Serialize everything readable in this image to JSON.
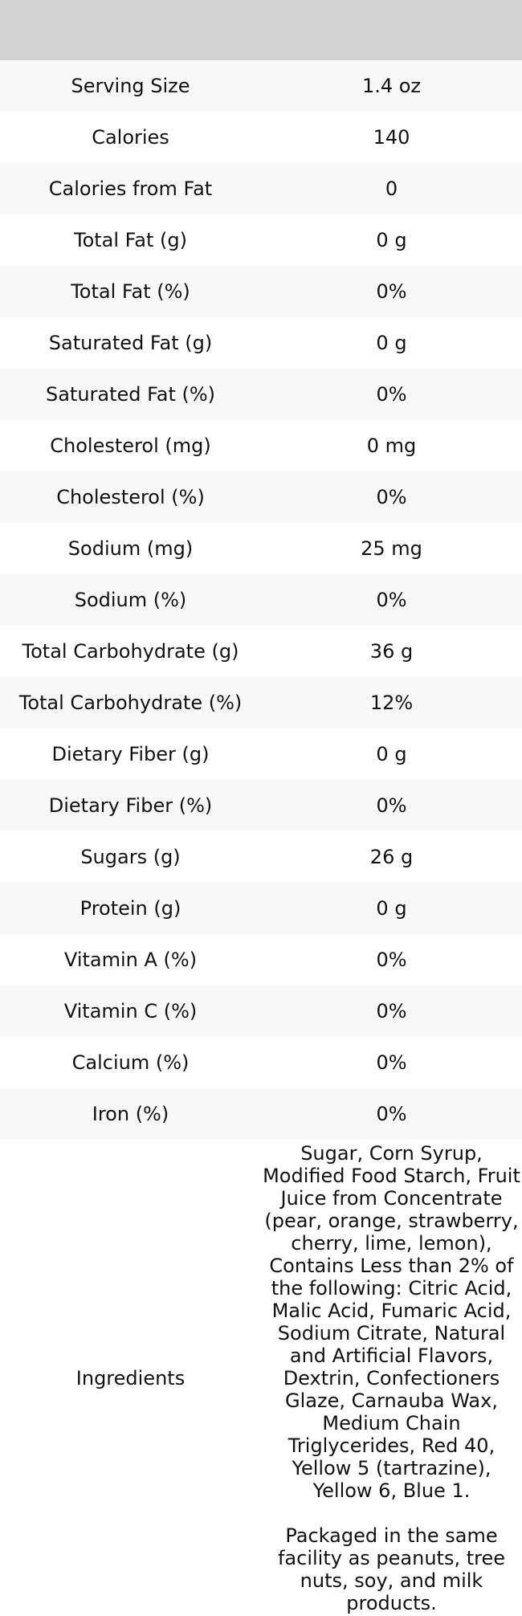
{
  "colors": {
    "header_bg": "#d3d3d3",
    "stripe_bg": "#f8f8f8",
    "row_bg": "#ffffff",
    "text": "#111111"
  },
  "table": {
    "header": {
      "col1": "",
      "col2": ""
    },
    "rows": [
      {
        "label": "Serving Size",
        "value": "1.4 oz"
      },
      {
        "label": "Calories",
        "value": "140"
      },
      {
        "label": "Calories from Fat",
        "value": "0"
      },
      {
        "label": "Total Fat (g)",
        "value": "0 g"
      },
      {
        "label": "Total Fat (%)",
        "value": "0%"
      },
      {
        "label": "Saturated Fat (g)",
        "value": "0 g"
      },
      {
        "label": "Saturated Fat (%)",
        "value": "0%"
      },
      {
        "label": "Cholesterol (mg)",
        "value": "0 mg"
      },
      {
        "label": "Cholesterol (%)",
        "value": "0%"
      },
      {
        "label": "Sodium (mg)",
        "value": "25 mg"
      },
      {
        "label": "Sodium (%)",
        "value": "0%"
      },
      {
        "label": "Total Carbohydrate (g)",
        "value": "36 g"
      },
      {
        "label": "Total Carbohydrate (%)",
        "value": "12%"
      },
      {
        "label": "Dietary Fiber (g)",
        "value": "0 g"
      },
      {
        "label": "Dietary Fiber (%)",
        "value": "0%"
      },
      {
        "label": "Sugars (g)",
        "value": "26 g"
      },
      {
        "label": "Protein (g)",
        "value": "0 g"
      },
      {
        "label": "Vitamin A (%)",
        "value": "0%"
      },
      {
        "label": "Vitamin C (%)",
        "value": "0%"
      },
      {
        "label": "Calcium (%)",
        "value": "0%"
      },
      {
        "label": "Iron (%)",
        "value": "0%"
      }
    ],
    "ingredients": {
      "label": "Ingredients",
      "value": "Sugar, Corn Syrup,\nModified Food Starch, Fruit\nJuice from Concentrate\n(pear, orange, strawberry,\ncherry, lime, lemon),\nContains Less than 2% of\nthe following: Citric Acid,\nMalic Acid, Fumaric Acid,\nSodium Citrate, Natural\nand Artificial Flavors,\nDextrin, Confectioners\nGlaze, Carnauba Wax,\nMedium Chain\nTriglycerides, Red 40,\nYellow 5 (tartrazine),\nYellow 6, Blue 1.\n\nPackaged in the same\nfacility as peanuts, tree\nnuts, soy, and milk\nproducts."
    }
  },
  "chart_data": {
    "type": "table",
    "title": "",
    "columns": [
      "",
      ""
    ],
    "rows": [
      [
        "Serving Size",
        "1.4 oz"
      ],
      [
        "Calories",
        "140"
      ],
      [
        "Calories from Fat",
        "0"
      ],
      [
        "Total Fat (g)",
        "0 g"
      ],
      [
        "Total Fat (%)",
        "0%"
      ],
      [
        "Saturated Fat (g)",
        "0 g"
      ],
      [
        "Saturated Fat (%)",
        "0%"
      ],
      [
        "Cholesterol (mg)",
        "0 mg"
      ],
      [
        "Cholesterol (%)",
        "0%"
      ],
      [
        "Sodium (mg)",
        "25 mg"
      ],
      [
        "Sodium (%)",
        "0%"
      ],
      [
        "Total Carbohydrate (g)",
        "36 g"
      ],
      [
        "Total Carbohydrate (%)",
        "12%"
      ],
      [
        "Dietary Fiber (g)",
        "0 g"
      ],
      [
        "Dietary Fiber (%)",
        "0%"
      ],
      [
        "Sugars (g)",
        "26 g"
      ],
      [
        "Protein (g)",
        "0 g"
      ],
      [
        "Vitamin A (%)",
        "0%"
      ],
      [
        "Vitamin C (%)",
        "0%"
      ],
      [
        "Calcium (%)",
        "0%"
      ],
      [
        "Iron (%)",
        "0%"
      ],
      [
        "Ingredients",
        "Sugar, Corn Syrup, Modified Food Starch, Fruit Juice from Concentrate (pear, orange, strawberry, cherry, lime, lemon), Contains Less than 2% of the following: Citric Acid, Malic Acid, Fumaric Acid, Sodium Citrate, Natural and Artificial Flavors, Dextrin, Confectioners Glaze, Carnauba Wax, Medium Chain Triglycerides, Red 40, Yellow 5 (tartrazine), Yellow 6, Blue 1. Packaged in the same facility as peanuts, tree nuts, soy, and milk products."
      ]
    ],
    "layout_hints": {
      "striped_rows": true,
      "header_band_empty": true,
      "columns_equal_width": true,
      "text_alignment": "center"
    }
  }
}
